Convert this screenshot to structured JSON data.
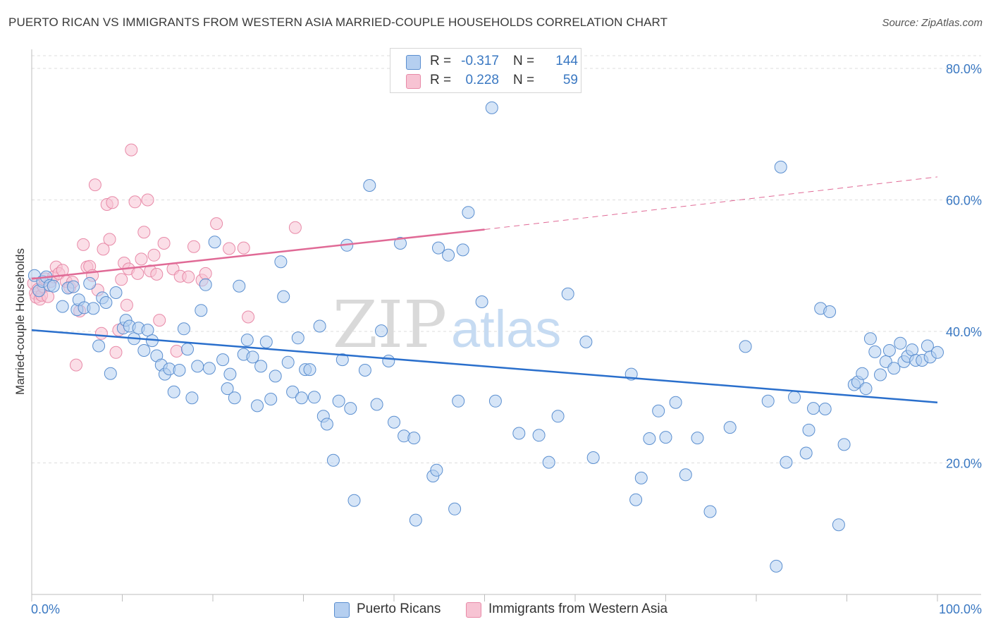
{
  "title": "PUERTO RICAN VS IMMIGRANTS FROM WESTERN ASIA MARRIED-COUPLE HOUSEHOLDS CORRELATION CHART",
  "source": "Source: ZipAtlas.com",
  "watermark": {
    "part1": "ZIP",
    "part2": "atlas"
  },
  "legend_top": [
    {
      "r_label": "R =",
      "r_value": "-0.317",
      "n_label": "N =",
      "n_value": "144"
    },
    {
      "r_label": "R =",
      "r_value": "0.228",
      "n_label": "N =",
      "n_value": "59"
    }
  ],
  "legend_bottom": [
    {
      "label": "Puerto Ricans"
    },
    {
      "label": "Immigrants from Western Asia"
    }
  ],
  "colors": {
    "blue_fill": "#b5cff0",
    "blue_stroke": "#5b8fd0",
    "blue_line": "#2a6fcc",
    "pink_fill": "#f7c3d3",
    "pink_stroke": "#e88aa8",
    "pink_line": "#e06a96",
    "axis_text": "#3a78c2",
    "grid": "#dddddd"
  },
  "chart_data": {
    "type": "scatter",
    "title": "PUERTO RICAN VS IMMIGRANTS FROM WESTERN ASIA MARRIED-COUPLE HOUSEHOLDS CORRELATION CHART",
    "xlabel": "",
    "ylabel": "Married-couple Households",
    "x_unit": "%",
    "xlim": [
      0,
      100
    ],
    "ylim": [
      0,
      82
    ],
    "x_tick_labels": [
      "0.0%",
      "100.0%"
    ],
    "y_ticks": [
      20,
      40,
      60,
      80
    ],
    "y_tick_labels": [
      "20.0%",
      "40.0%",
      "60.0%",
      "80.0%"
    ],
    "grid": "horizontal dashed",
    "legend_placement": "top-center and bottom",
    "series": [
      {
        "name": "Puerto Ricans",
        "color": "blue",
        "r": -0.317,
        "n": 144,
        "trend": {
          "x": [
            0,
            100
          ],
          "y": [
            40.2,
            29.2
          ],
          "style": "solid"
        },
        "points": [
          [
            0.3,
            48.5
          ],
          [
            0.8,
            46.2
          ],
          [
            1.2,
            47.6
          ],
          [
            1.6,
            48.3
          ],
          [
            2.0,
            47.0
          ],
          [
            2.4,
            46.9
          ],
          [
            3.4,
            43.8
          ],
          [
            4.0,
            46.6
          ],
          [
            4.6,
            46.8
          ],
          [
            5.0,
            43.3
          ],
          [
            5.2,
            44.8
          ],
          [
            5.8,
            43.6
          ],
          [
            6.4,
            47.3
          ],
          [
            6.8,
            43.5
          ],
          [
            7.4,
            37.8
          ],
          [
            7.8,
            45.1
          ],
          [
            8.2,
            44.4
          ],
          [
            8.7,
            33.6
          ],
          [
            9.3,
            45.9
          ],
          [
            10.1,
            40.5
          ],
          [
            10.4,
            41.7
          ],
          [
            10.8,
            40.8
          ],
          [
            11.3,
            38.9
          ],
          [
            11.8,
            40.5
          ],
          [
            12.4,
            37.1
          ],
          [
            12.8,
            40.2
          ],
          [
            13.3,
            38.6
          ],
          [
            13.8,
            36.3
          ],
          [
            14.3,
            34.9
          ],
          [
            14.7,
            33.5
          ],
          [
            15.2,
            34.3
          ],
          [
            15.7,
            30.8
          ],
          [
            16.3,
            34.1
          ],
          [
            16.8,
            40.4
          ],
          [
            17.2,
            37.3
          ],
          [
            17.7,
            29.9
          ],
          [
            18.3,
            34.7
          ],
          [
            18.7,
            43.2
          ],
          [
            19.2,
            47.1
          ],
          [
            19.6,
            34.4
          ],
          [
            20.2,
            53.6
          ],
          [
            21.1,
            35.7
          ],
          [
            21.6,
            31.3
          ],
          [
            21.9,
            33.5
          ],
          [
            22.4,
            29.9
          ],
          [
            22.9,
            46.9
          ],
          [
            23.4,
            36.5
          ],
          [
            23.8,
            38.7
          ],
          [
            24.4,
            36.1
          ],
          [
            24.9,
            28.7
          ],
          [
            25.3,
            34.7
          ],
          [
            25.9,
            38.4
          ],
          [
            26.4,
            29.7
          ],
          [
            26.9,
            33.2
          ],
          [
            27.5,
            50.6
          ],
          [
            27.8,
            45.3
          ],
          [
            28.3,
            35.3
          ],
          [
            28.8,
            30.8
          ],
          [
            29.4,
            39.0
          ],
          [
            29.8,
            29.9
          ],
          [
            30.2,
            34.2
          ],
          [
            30.7,
            34.2
          ],
          [
            31.2,
            30.0
          ],
          [
            31.8,
            40.8
          ],
          [
            32.2,
            27.1
          ],
          [
            32.6,
            25.9
          ],
          [
            33.3,
            20.4
          ],
          [
            33.9,
            29.4
          ],
          [
            34.3,
            35.7
          ],
          [
            34.8,
            53.1
          ],
          [
            35.2,
            28.3
          ],
          [
            35.6,
            14.3
          ],
          [
            36.8,
            34.1
          ],
          [
            37.3,
            62.2
          ],
          [
            38.1,
            28.9
          ],
          [
            38.6,
            40.1
          ],
          [
            39.4,
            35.5
          ],
          [
            40.0,
            26.2
          ],
          [
            40.7,
            53.4
          ],
          [
            41.1,
            24.1
          ],
          [
            42.2,
            23.8
          ],
          [
            42.4,
            11.3
          ],
          [
            44.3,
            18.0
          ],
          [
            44.7,
            18.9
          ],
          [
            44.9,
            52.7
          ],
          [
            46.0,
            51.6
          ],
          [
            46.7,
            13.0
          ],
          [
            47.1,
            29.4
          ],
          [
            47.6,
            52.4
          ],
          [
            48.2,
            58.1
          ],
          [
            49.7,
            44.5
          ],
          [
            50.8,
            74.0
          ],
          [
            51.2,
            29.4
          ],
          [
            53.8,
            24.5
          ],
          [
            56.0,
            24.2
          ],
          [
            57.1,
            20.1
          ],
          [
            58.1,
            27.1
          ],
          [
            59.2,
            45.7
          ],
          [
            61.2,
            38.4
          ],
          [
            62.0,
            20.8
          ],
          [
            66.2,
            33.5
          ],
          [
            66.7,
            14.4
          ],
          [
            67.3,
            17.7
          ],
          [
            68.2,
            23.7
          ],
          [
            69.2,
            27.9
          ],
          [
            70.0,
            23.9
          ],
          [
            71.1,
            29.2
          ],
          [
            72.2,
            18.2
          ],
          [
            73.5,
            23.8
          ],
          [
            74.9,
            12.6
          ],
          [
            77.1,
            25.4
          ],
          [
            78.8,
            37.7
          ],
          [
            81.3,
            29.4
          ],
          [
            82.2,
            4.3
          ],
          [
            82.7,
            65.0
          ],
          [
            83.3,
            20.1
          ],
          [
            84.2,
            30.0
          ],
          [
            85.5,
            21.5
          ],
          [
            85.8,
            25.0
          ],
          [
            86.3,
            28.3
          ],
          [
            87.1,
            43.5
          ],
          [
            87.6,
            28.2
          ],
          [
            88.1,
            43.0
          ],
          [
            89.1,
            10.6
          ],
          [
            89.7,
            22.8
          ],
          [
            90.8,
            31.9
          ],
          [
            91.2,
            32.3
          ],
          [
            91.7,
            33.6
          ],
          [
            92.1,
            31.3
          ],
          [
            92.6,
            38.9
          ],
          [
            93.1,
            36.9
          ],
          [
            93.7,
            33.4
          ],
          [
            94.3,
            35.4
          ],
          [
            94.7,
            37.1
          ],
          [
            95.2,
            34.4
          ],
          [
            95.9,
            38.2
          ],
          [
            96.3,
            35.4
          ],
          [
            96.7,
            36.2
          ],
          [
            97.2,
            37.2
          ],
          [
            97.6,
            35.6
          ],
          [
            98.3,
            35.6
          ],
          [
            98.9,
            37.8
          ],
          [
            99.2,
            36.1
          ],
          [
            100.0,
            36.8
          ]
        ]
      },
      {
        "name": "Immigrants from Western Asia",
        "color": "pink",
        "r": 0.228,
        "n": 59,
        "trend": {
          "x": [
            0,
            50
          ],
          "y": [
            48.0,
            55.5
          ],
          "style": "solid",
          "extended": {
            "x": [
              50,
              100
            ],
            "y": [
              55.5,
              63.5
            ],
            "style": "dashed"
          }
        },
        "points": [
          [
            0.2,
            47.3
          ],
          [
            0.4,
            45.8
          ],
          [
            0.5,
            45.2
          ],
          [
            0.7,
            46.4
          ],
          [
            0.9,
            44.9
          ],
          [
            1.1,
            45.5
          ],
          [
            1.3,
            46.8
          ],
          [
            1.5,
            48.0
          ],
          [
            1.8,
            45.3
          ],
          [
            2.1,
            47.6
          ],
          [
            2.4,
            48.3
          ],
          [
            2.7,
            49.8
          ],
          [
            3.0,
            48.8
          ],
          [
            3.4,
            49.3
          ],
          [
            3.8,
            47.6
          ],
          [
            4.2,
            46.7
          ],
          [
            4.5,
            47.5
          ],
          [
            4.9,
            34.9
          ],
          [
            5.3,
            43.1
          ],
          [
            5.7,
            53.2
          ],
          [
            6.1,
            49.8
          ],
          [
            6.4,
            49.9
          ],
          [
            6.7,
            48.5
          ],
          [
            7.0,
            62.3
          ],
          [
            7.3,
            46.3
          ],
          [
            7.7,
            39.7
          ],
          [
            7.9,
            52.5
          ],
          [
            8.3,
            59.3
          ],
          [
            8.6,
            54.0
          ],
          [
            8.9,
            59.6
          ],
          [
            9.3,
            36.8
          ],
          [
            9.6,
            40.2
          ],
          [
            9.9,
            47.9
          ],
          [
            10.2,
            50.4
          ],
          [
            10.5,
            44.0
          ],
          [
            10.7,
            49.5
          ],
          [
            11.0,
            67.6
          ],
          [
            11.4,
            59.7
          ],
          [
            11.7,
            48.8
          ],
          [
            12.1,
            51.0
          ],
          [
            12.4,
            55.1
          ],
          [
            12.8,
            60.0
          ],
          [
            13.1,
            49.2
          ],
          [
            13.5,
            51.6
          ],
          [
            13.8,
            48.7
          ],
          [
            14.1,
            41.7
          ],
          [
            14.6,
            53.4
          ],
          [
            15.6,
            49.5
          ],
          [
            16.0,
            37.0
          ],
          [
            16.4,
            48.4
          ],
          [
            17.3,
            48.3
          ],
          [
            17.9,
            52.9
          ],
          [
            18.8,
            47.8
          ],
          [
            19.2,
            48.8
          ],
          [
            20.4,
            56.4
          ],
          [
            21.8,
            52.6
          ],
          [
            23.4,
            52.7
          ],
          [
            23.9,
            42.2
          ],
          [
            29.1,
            55.8
          ]
        ]
      }
    ]
  }
}
